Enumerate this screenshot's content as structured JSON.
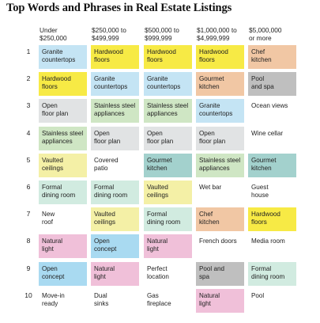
{
  "chart_data": {
    "type": "table",
    "title": "Top Words and Phrases in Real Estate Listings",
    "columns": [
      "Under\n$250,000",
      "$250,000 to\n$499,999",
      "$500,000 to\n$999,999",
      "$1,000,000 to\n$4,999,999",
      "$5,000,000\nor more"
    ],
    "ranks": [
      "1",
      "2",
      "3",
      "4",
      "5",
      "6",
      "7",
      "8",
      "9",
      "10"
    ],
    "rows": [
      [
        {
          "text": "Granite\ncountertops",
          "tag": "granite"
        },
        {
          "text": "Hardwood\nfloors",
          "tag": "hardwood"
        },
        {
          "text": "Hardwood\nfloors",
          "tag": "hardwood"
        },
        {
          "text": "Hardwood\nfloors",
          "tag": "hardwood"
        },
        {
          "text": "Chef\nkitchen",
          "tag": "chef"
        }
      ],
      [
        {
          "text": "Hardwood\nfloors",
          "tag": "hardwood"
        },
        {
          "text": "Granite\ncountertops",
          "tag": "granite"
        },
        {
          "text": "Granite\ncountertops",
          "tag": "granite"
        },
        {
          "text": "Gourmet\nkitchen",
          "tag": "chef"
        },
        {
          "text": "Pool\nand spa",
          "tag": "pool"
        }
      ],
      [
        {
          "text": "Open\nfloor plan",
          "tag": "openfloor"
        },
        {
          "text": "Stainless steel\nappliances",
          "tag": "stainless"
        },
        {
          "text": "Stainless steel\nappliances",
          "tag": "stainless"
        },
        {
          "text": "Granite\ncountertops",
          "tag": "granite"
        },
        {
          "text": "Ocean views",
          "tag": "none"
        }
      ],
      [
        {
          "text": "Stainless steel\nappliances",
          "tag": "stainless"
        },
        {
          "text": "Open\nfloor plan",
          "tag": "openfloor"
        },
        {
          "text": "Open\nfloor plan",
          "tag": "openfloor"
        },
        {
          "text": "Open\nfloor plan",
          "tag": "openfloor"
        },
        {
          "text": "Wine cellar",
          "tag": "none"
        }
      ],
      [
        {
          "text": "Vaulted\nceilings",
          "tag": "vaulted"
        },
        {
          "text": "Covered\npatio",
          "tag": "none"
        },
        {
          "text": "Gourmet\nkitchen",
          "tag": "gourmet"
        },
        {
          "text": "Stainless steel\nappliances",
          "tag": "stainless"
        },
        {
          "text": "Gourmet\nkitchen",
          "tag": "gourmet"
        }
      ],
      [
        {
          "text": "Formal\ndining room",
          "tag": "formal"
        },
        {
          "text": "Formal\ndining room",
          "tag": "formal"
        },
        {
          "text": "Vaulted\nceilings",
          "tag": "vaulted"
        },
        {
          "text": "Wet bar",
          "tag": "none"
        },
        {
          "text": "Guest\nhouse",
          "tag": "none"
        }
      ],
      [
        {
          "text": "New\nroof",
          "tag": "none"
        },
        {
          "text": "Vaulted\nceilings",
          "tag": "vaulted"
        },
        {
          "text": "Formal\ndining room",
          "tag": "formal"
        },
        {
          "text": "Chef\nkitchen",
          "tag": "chef"
        },
        {
          "text": "Hardwood\nfloors",
          "tag": "hardwood"
        }
      ],
      [
        {
          "text": "Natural\nlight",
          "tag": "natural"
        },
        {
          "text": "Open\nconcept",
          "tag": "openconcept"
        },
        {
          "text": "Natural\nlight",
          "tag": "natural"
        },
        {
          "text": "French doors",
          "tag": "none"
        },
        {
          "text": "Media room",
          "tag": "none"
        }
      ],
      [
        {
          "text": "Open\nconcept",
          "tag": "openconcept"
        },
        {
          "text": "Natural\nlight",
          "tag": "natural"
        },
        {
          "text": "Perfect\nlocation",
          "tag": "none"
        },
        {
          "text": "Pool and\nspa",
          "tag": "pool"
        },
        {
          "text": "Formal\ndining room",
          "tag": "formal"
        }
      ],
      [
        {
          "text": "Move-in\nready",
          "tag": "none"
        },
        {
          "text": "Dual\nsinks",
          "tag": "none"
        },
        {
          "text": "Gas\nfireplace",
          "tag": "none"
        },
        {
          "text": "Natural\nlight",
          "tag": "natural"
        },
        {
          "text": "Pool",
          "tag": "none"
        }
      ]
    ],
    "colors": {
      "granite": "#c4e4f4",
      "hardwood": "#f7ea45",
      "chef": "#f1c7a4",
      "pool": "#bfbfbf",
      "openfloor": "#e1e3e4",
      "stainless": "#cfe6c4",
      "vaulted": "#f4f0a6",
      "gourmet": "#a3d1cd",
      "formal": "#d1ebe0",
      "natural": "#f0c0d9",
      "openconcept": "#a9daf1",
      "none": "transparent"
    }
  }
}
